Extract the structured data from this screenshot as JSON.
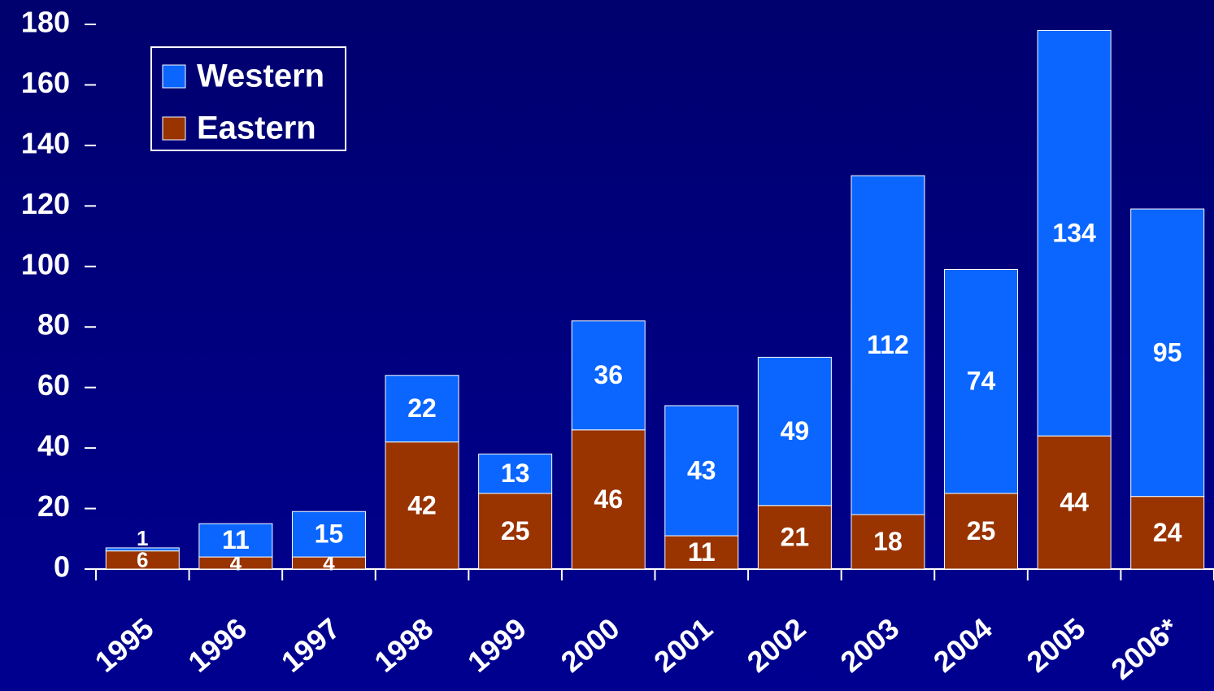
{
  "chart_data": {
    "type": "stacked_bar",
    "categories": [
      "1995",
      "1996",
      "1997",
      "1998",
      "1999",
      "2000",
      "2001",
      "2002",
      "2003",
      "2004",
      "2005",
      "2006*"
    ],
    "series": [
      {
        "name": "Eastern",
        "color": "#993300",
        "values": [
          6,
          4,
          4,
          42,
          25,
          46,
          11,
          21,
          18,
          25,
          44,
          24
        ]
      },
      {
        "name": "Western",
        "color": "#0a66ff",
        "values": [
          1,
          11,
          15,
          22,
          13,
          36,
          43,
          49,
          112,
          74,
          134,
          95
        ]
      }
    ],
    "ylim": [
      0,
      180
    ],
    "yticks": [
      0,
      20,
      40,
      60,
      80,
      100,
      120,
      140,
      160,
      180
    ],
    "legend": "top-left"
  }
}
